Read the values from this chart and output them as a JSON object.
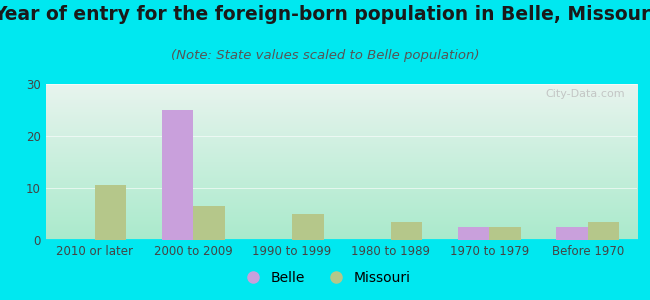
{
  "title": "Year of entry for the foreign-born population in Belle, Missouri",
  "subtitle": "(Note: State values scaled to Belle population)",
  "categories": [
    "2010 or later",
    "2000 to 2009",
    "1990 to 1999",
    "1980 to 1989",
    "1970 to 1979",
    "Before 1970"
  ],
  "belle_values": [
    0,
    25,
    0,
    0,
    2.5,
    2.5
  ],
  "missouri_values": [
    10.5,
    6.5,
    5,
    3.5,
    2.5,
    3.5
  ],
  "belle_color": "#c9a0dc",
  "missouri_color": "#b5c78a",
  "ylim": [
    0,
    30
  ],
  "yticks": [
    0,
    10,
    20,
    30
  ],
  "bg_outer": "#00e8f0",
  "bg_plot_topleft": "#d6f0e0",
  "bg_plot_topright": "#e8f4ee",
  "bg_plot_bottom": "#a8e8c8",
  "title_fontsize": 13.5,
  "subtitle_fontsize": 9.5,
  "tick_fontsize": 8.5,
  "legend_fontsize": 10,
  "bar_width": 0.32,
  "watermark": "City-Data.com"
}
